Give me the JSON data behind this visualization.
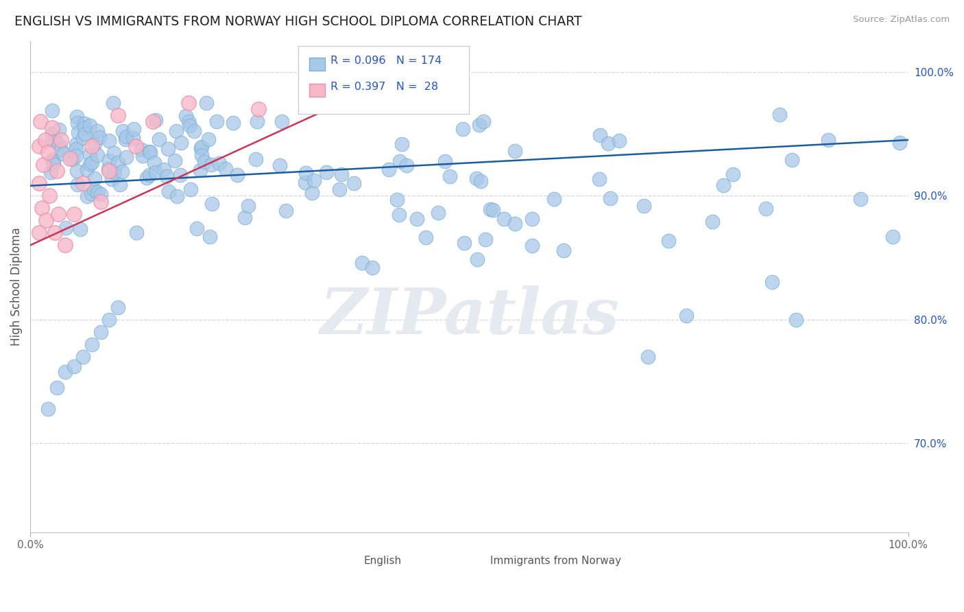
{
  "title": "ENGLISH VS IMMIGRANTS FROM NORWAY HIGH SCHOOL DIPLOMA CORRELATION CHART",
  "source": "Source: ZipAtlas.com",
  "ylabel": "High School Diploma",
  "xmin": 0.0,
  "xmax": 1.0,
  "ymin": 0.628,
  "ymax": 1.025,
  "ytick_vals": [
    0.7,
    0.8,
    0.9,
    1.0
  ],
  "ytick_labels": [
    "70.0%",
    "80.0%",
    "90.0%",
    "100.0%"
  ],
  "grid_vals": [
    0.7,
    0.8,
    0.9,
    1.0
  ],
  "watermark_text": "ZIPatlas",
  "legend_line1": "R = 0.096   N = 174",
  "legend_line2": "R = 0.397   N =  28",
  "legend_label_english": "English",
  "legend_label_norway": "Immigrants from Norway",
  "color_english_fill": "#a8c8e8",
  "color_english_edge": "#7ab0d8",
  "color_norway_fill": "#f8b8c8",
  "color_norway_edge": "#e890a8",
  "color_trendline_english": "#1a5ca0",
  "color_trendline_norway": "#cc3355",
  "color_r_value": "#2255cc",
  "color_grid": "#d0d8e0",
  "background_color": "#ffffff",
  "eng_trendline": [
    0.0,
    1.0,
    0.908,
    0.945
  ],
  "nor_trendline": [
    0.0,
    0.37,
    0.86,
    0.98
  ]
}
